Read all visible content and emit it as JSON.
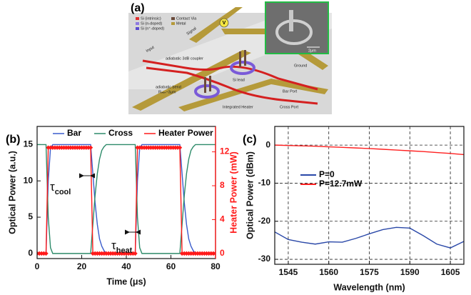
{
  "diagram": {
    "panel_label": "(a)",
    "legend": [
      "Si (intrinsic)",
      "Si (n-doped)",
      "Si (n⁺-doped)",
      "Contact Via",
      "Metal"
    ],
    "voltage": "V",
    "labels": {
      "signal": "Signal",
      "ground": "Ground",
      "input": "Input",
      "coupler": "adiabatic 3dB coupler",
      "bend": "adiabatic bend",
      "radius": "Rₘᵢₙ~3μm",
      "lead": "Si lead",
      "bar_port": "Bar Port",
      "cross_port": "Cross Port",
      "heater": "Integrated Heater",
      "scale": "2μm"
    }
  },
  "chart_data": [
    {
      "type": "line",
      "panel_label": "(b)",
      "x_label": "Time (μs)",
      "y_label": "Optical Power (a.u.)",
      "y2_label": "Heater Power (mW)",
      "x": [
        0,
        1,
        2,
        3,
        4,
        5,
        6,
        7,
        8,
        9,
        10,
        11,
        12,
        13,
        14,
        15,
        16,
        17,
        18,
        19,
        20,
        21,
        22,
        23,
        24,
        25,
        26,
        27,
        28,
        29,
        30,
        31,
        32,
        33,
        34,
        35,
        36,
        37,
        38,
        39,
        40,
        41,
        42,
        43,
        44,
        45,
        46,
        47,
        48,
        49,
        50,
        51,
        52,
        53,
        54,
        55,
        56,
        57,
        58,
        59,
        60,
        61,
        62,
        63,
        64,
        65,
        66,
        67,
        68,
        69,
        70,
        71,
        72,
        73,
        74,
        75,
        76,
        77,
        78,
        79,
        80
      ],
      "series": [
        {
          "name": "Bar",
          "color": "#3b5ccc",
          "values": [
            0,
            0,
            0,
            0,
            0,
            10,
            14.5,
            15,
            15,
            15,
            15,
            15,
            15,
            15,
            15,
            15,
            15,
            15,
            15,
            15,
            15,
            15,
            15,
            15,
            15,
            11,
            7,
            4,
            2,
            1,
            0.4,
            0,
            0,
            0,
            0,
            0,
            0,
            0,
            0,
            0,
            0,
            0,
            0,
            0,
            0,
            10,
            14.5,
            15,
            15,
            15,
            15,
            15,
            15,
            15,
            15,
            15,
            15,
            15,
            15,
            15,
            15,
            15,
            15,
            15,
            15,
            11,
            7,
            4,
            2,
            1,
            0.4,
            0,
            0,
            0,
            0,
            0,
            0,
            0,
            0,
            0,
            0
          ]
        },
        {
          "name": "Cross",
          "color": "#2e8b6a",
          "values": [
            15,
            15,
            15,
            15,
            15,
            5,
            0.8,
            0,
            0,
            0,
            0,
            0,
            0,
            0,
            0,
            0,
            0,
            0,
            0,
            0,
            0,
            0,
            0,
            0,
            0,
            4,
            8,
            11,
            13,
            14.2,
            14.7,
            15,
            15,
            15,
            15,
            15,
            15,
            15,
            15,
            15,
            15,
            15,
            15,
            15,
            15,
            5,
            0.8,
            0,
            0,
            0,
            0,
            0,
            0,
            0,
            0,
            0,
            0,
            0,
            0,
            0,
            0,
            0,
            0,
            0,
            0,
            4,
            8,
            11,
            13,
            14.2,
            14.7,
            15,
            15,
            15,
            15,
            15,
            15,
            15,
            15,
            15,
            15
          ]
        },
        {
          "name": "Heater Power",
          "color": "#ff1a1a",
          "axis": "y2",
          "marker": "diamond",
          "values": [
            0,
            0,
            0,
            0,
            0,
            12.5,
            12.5,
            12.5,
            12.5,
            12.5,
            12.5,
            12.5,
            12.5,
            12.5,
            12.5,
            12.5,
            12.5,
            12.5,
            12.5,
            12.5,
            12.5,
            12.5,
            12.5,
            12.5,
            12.5,
            0,
            0,
            0,
            0,
            0,
            0,
            0,
            0,
            0,
            0,
            0,
            0,
            0,
            0,
            0,
            0,
            0,
            0,
            0,
            0,
            12.5,
            12.5,
            12.5,
            12.5,
            12.5,
            12.5,
            12.5,
            12.5,
            12.5,
            12.5,
            12.5,
            12.5,
            12.5,
            12.5,
            12.5,
            12.5,
            12.5,
            12.5,
            12.5,
            12.5,
            0,
            0,
            0,
            0,
            0,
            0,
            0,
            0,
            0,
            0,
            0,
            0,
            0,
            0,
            0,
            0
          ]
        }
      ],
      "annotations": [
        {
          "symbol": "τ",
          "subscript": "cool"
        },
        {
          "symbol": "τ",
          "subscript": "heat"
        }
      ],
      "xlim": [
        0,
        80
      ],
      "xticks": [
        0,
        20,
        40,
        60,
        80
      ],
      "ylim": [
        -0.7,
        17.5
      ],
      "yticks": [
        0,
        5,
        10,
        15
      ],
      "y2lim": [
        -0.6,
        15
      ],
      "y2ticks": [
        0,
        4,
        8,
        12
      ],
      "y2_color": "#ff1a1a",
      "grid": false,
      "legend": "upper center"
    },
    {
      "type": "line",
      "panel_label": "(c)",
      "x_label": "Wavelength (nm)",
      "y_label": "Optical Power (dBm)",
      "x": [
        1540,
        1545,
        1550,
        1555,
        1560,
        1565,
        1570,
        1575,
        1580,
        1585,
        1590,
        1595,
        1600,
        1605,
        1610
      ],
      "series": [
        {
          "name": "P=0",
          "color": "#2a48a8",
          "values": [
            -22.8,
            -24.8,
            -25.5,
            -26,
            -25.4,
            -25.5,
            -24.5,
            -23.3,
            -22.2,
            -21.6,
            -21.8,
            -23.8,
            -26,
            -27,
            -25.3
          ]
        },
        {
          "name": "P=12.7mW",
          "color": "#ff2020",
          "values": [
            0,
            -0.1,
            -0.2,
            -0.3,
            -0.45,
            -0.6,
            -0.75,
            -0.9,
            -1.1,
            -1.3,
            -1.5,
            -1.7,
            -1.95,
            -2.2,
            -2.5
          ]
        }
      ],
      "xlim": [
        1540,
        1610
      ],
      "xticks": [
        1545,
        1560,
        1575,
        1590,
        1605
      ],
      "ylim": [
        -31.3,
        4.9
      ],
      "yticks": [
        -30,
        -20,
        -10,
        0
      ],
      "grid": true,
      "legend": "center left"
    }
  ]
}
